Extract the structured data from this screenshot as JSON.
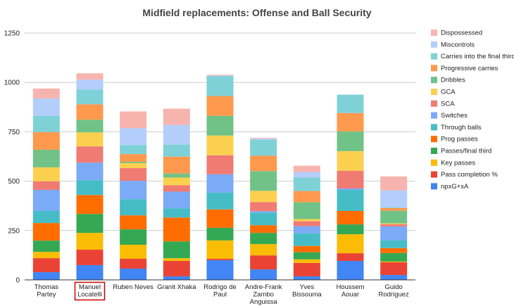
{
  "chart_data": {
    "type": "bar",
    "stacked": true,
    "title": "Midfield replacements: Offense and Ball Security",
    "xlabel": "",
    "ylabel": "",
    "ylim": [
      0,
      1250
    ],
    "yticks": [
      0,
      250,
      500,
      750,
      1000,
      1250
    ],
    "grid": true,
    "legend_position": "right",
    "highlighted_category": "Manuel Locatelli",
    "highlight_color": "#cc0000",
    "categories": [
      "Thomas Partey",
      "Manuel Locatelli",
      "Ruben Neves",
      "Granit Xhaka",
      "Rodrigo de Paul",
      "Andre-Frank Zambo Anguissa",
      "Yves Bissouma",
      "Houssem Aouar",
      "Guido Rodriguez"
    ],
    "category_lines": [
      [
        "Thomas",
        "Partey"
      ],
      [
        "Manuel",
        "Locatelli"
      ],
      [
        "Ruben Neves"
      ],
      [
        "Granit Xhaka"
      ],
      [
        "Rodrigo de",
        "Paul"
      ],
      [
        "Andre-Frank",
        "Zambo",
        "Anguissa"
      ],
      [
        "Yves",
        "Bissouma"
      ],
      [
        "Houssem",
        "Aouar"
      ],
      [
        "Guido",
        "Rodriguez"
      ]
    ],
    "series": [
      {
        "name": "npxG+xA",
        "color": "#4285f4",
        "values": [
          39,
          75,
          57,
          18,
          100,
          53,
          18,
          96,
          25
        ]
      },
      {
        "name": "Pass completion %",
        "color": "#ea4335",
        "values": [
          71,
          78,
          50,
          78,
          7,
          71,
          68,
          39,
          64
        ]
      },
      {
        "name": "Key passes",
        "color": "#fbbc04",
        "values": [
          32,
          85,
          71,
          14,
          93,
          57,
          18,
          96,
          4
        ]
      },
      {
        "name": "Passes/final third",
        "color": "#34a853",
        "values": [
          57,
          96,
          78,
          85,
          64,
          57,
          36,
          50,
          43
        ]
      },
      {
        "name": "Prog passes",
        "color": "#ff6d01",
        "values": [
          89,
          96,
          71,
          121,
          93,
          39,
          32,
          68,
          25
        ]
      },
      {
        "name": "Through balls",
        "color": "#46bdc6",
        "values": [
          61,
          75,
          82,
          46,
          85,
          64,
          64,
          107,
          39
        ]
      },
      {
        "name": "Switches",
        "color": "#7baaf7",
        "values": [
          107,
          89,
          93,
          85,
          93,
          7,
          36,
          7,
          71
        ]
      },
      {
        "name": "SCA",
        "color": "#f07b72",
        "values": [
          43,
          82,
          64,
          32,
          96,
          46,
          25,
          89,
          11
        ]
      },
      {
        "name": "GCA",
        "color": "#fcd04f",
        "values": [
          71,
          71,
          25,
          39,
          100,
          57,
          11,
          100,
          4
        ]
      },
      {
        "name": "Dribbles",
        "color": "#71c287",
        "values": [
          89,
          64,
          7,
          21,
          100,
          100,
          85,
          100,
          64
        ]
      },
      {
        "name": "Progressive carries",
        "color": "#ff994d",
        "values": [
          89,
          78,
          39,
          85,
          100,
          78,
          57,
          93,
          14
        ]
      },
      {
        "name": "Carries into the final third",
        "color": "#7ed1d7",
        "values": [
          82,
          75,
          46,
          61,
          100,
          82,
          68,
          93,
          4
        ]
      },
      {
        "name": "Miscontrols",
        "color": "#b3cefb",
        "values": [
          89,
          50,
          85,
          100,
          4,
          4,
          28,
          0,
          85
        ]
      },
      {
        "name": "Dispossessed",
        "color": "#f7b4ae",
        "values": [
          50,
          32,
          85,
          82,
          4,
          4,
          32,
          0,
          71
        ]
      }
    ]
  }
}
